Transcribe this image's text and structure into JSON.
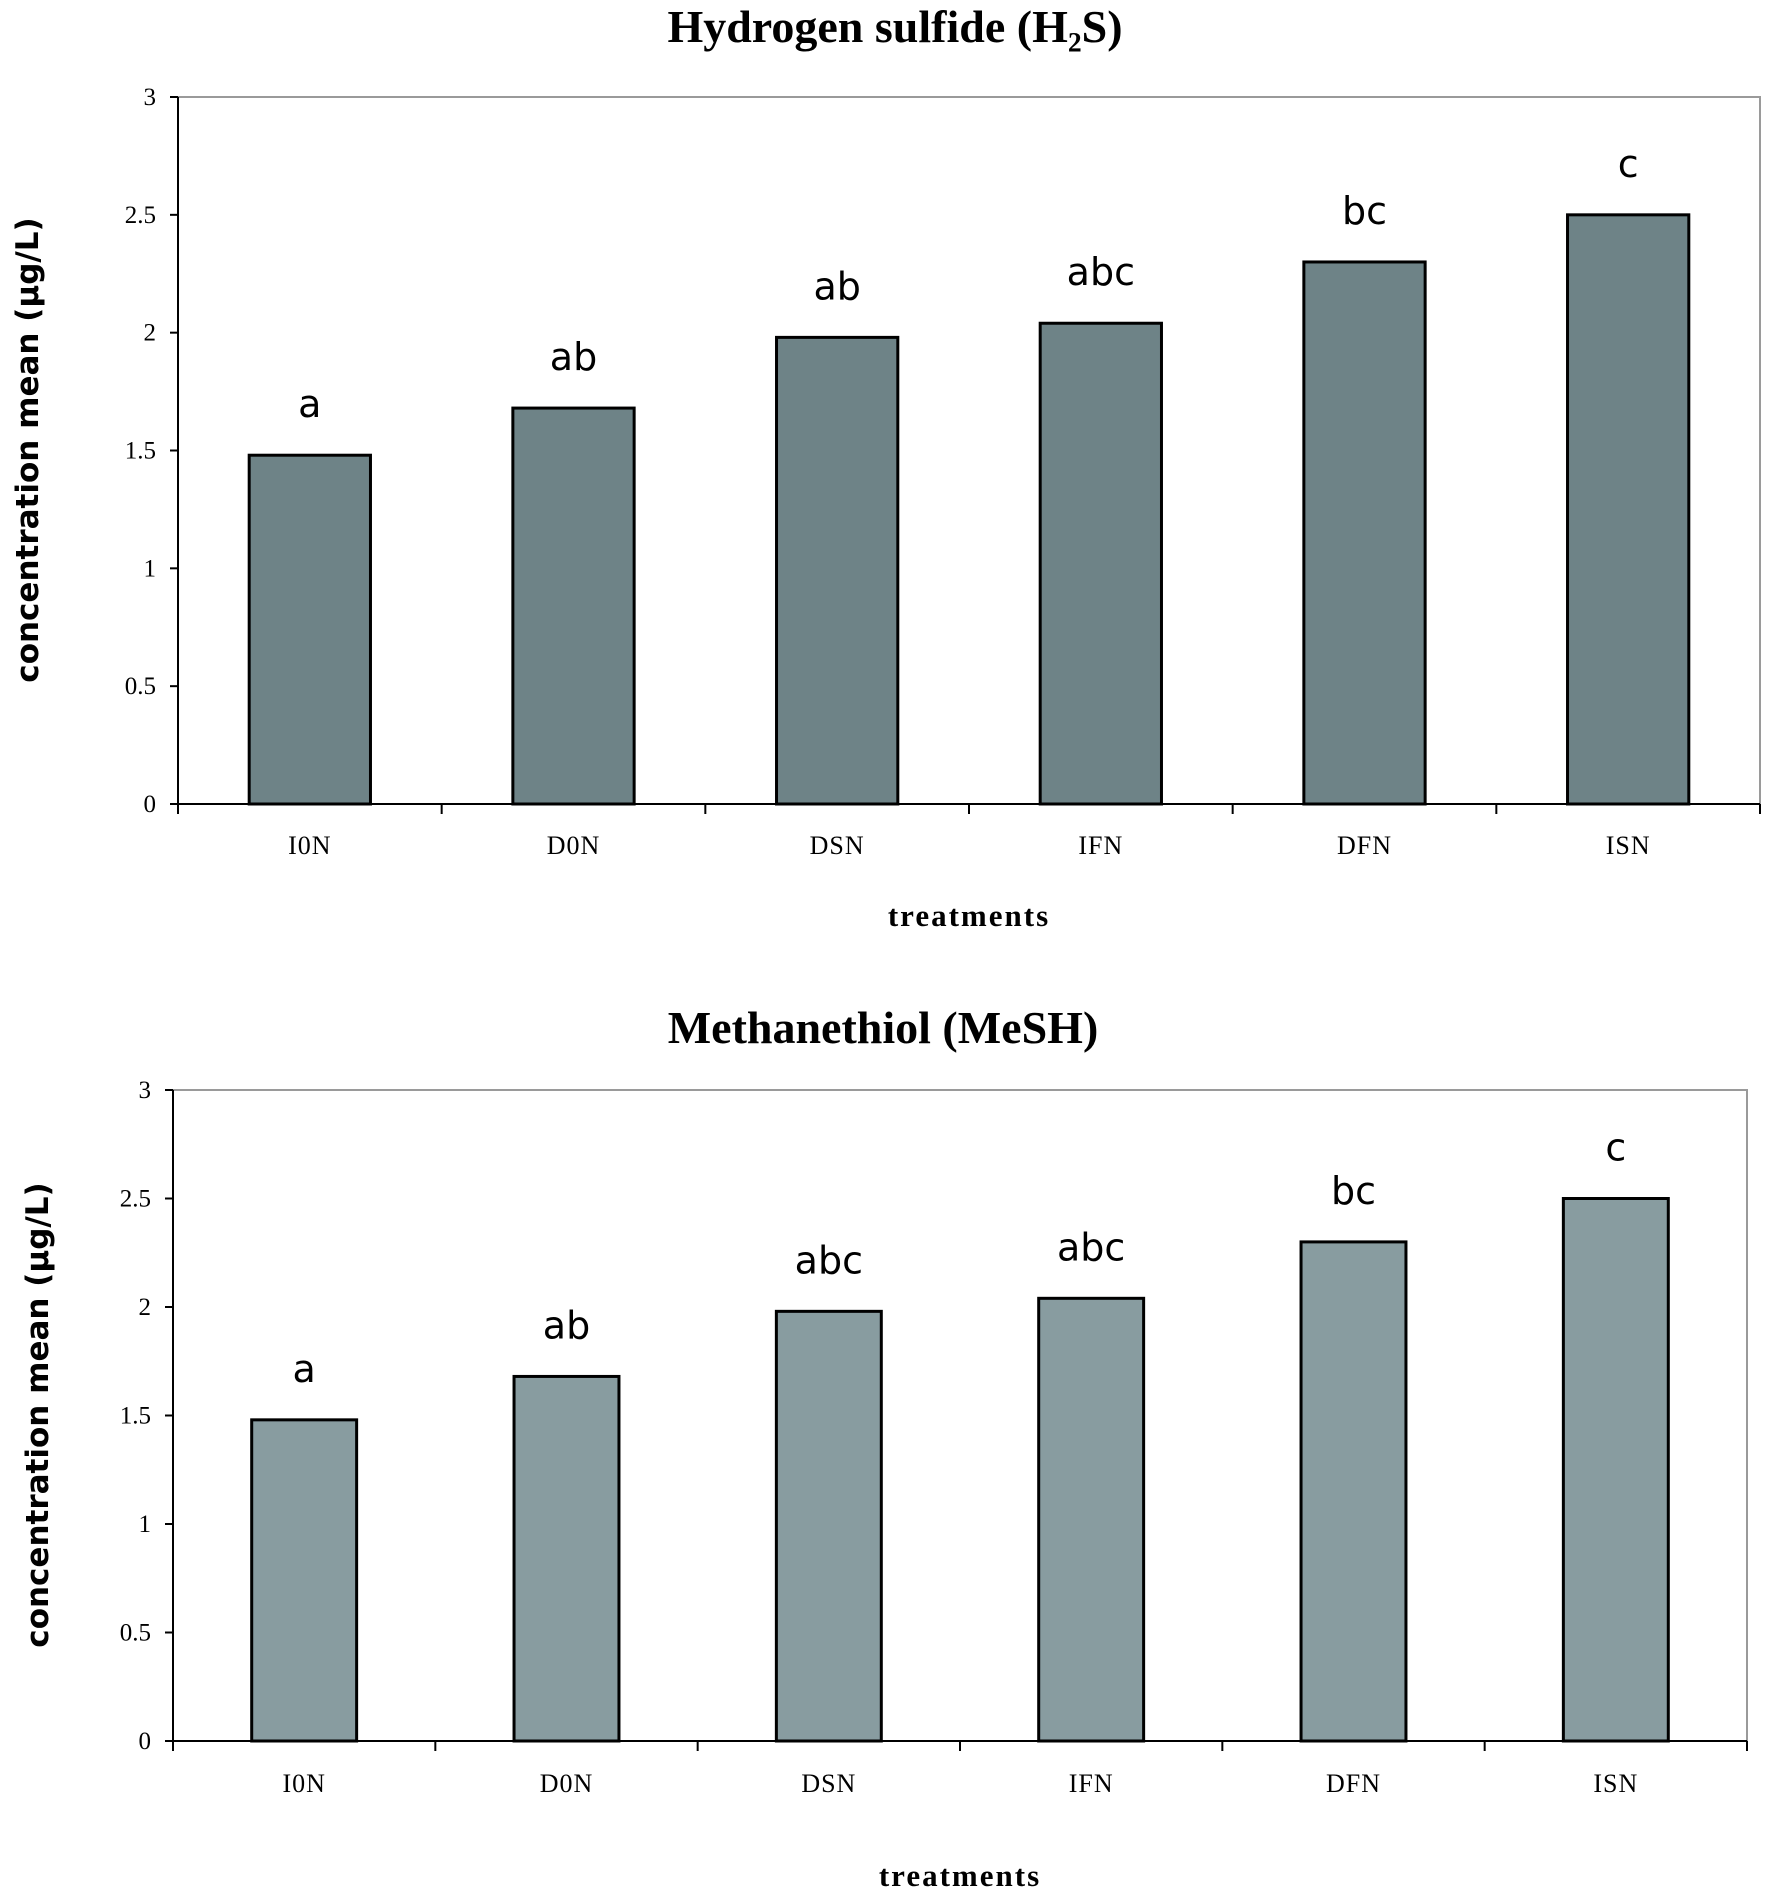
{
  "chart_data": [
    {
      "type": "bar",
      "title": "Hydrogen sulfide (H₂S)",
      "xlabel": "treatments",
      "ylabel": "concentration mean (µg/L)",
      "categories": [
        "I0N",
        "D0N",
        "DSN",
        "IFN",
        "DFN",
        "ISN"
      ],
      "values": [
        1.48,
        1.68,
        1.98,
        2.04,
        2.3,
        2.5
      ],
      "annotations": [
        "a",
        "ab",
        "ab",
        "abc",
        "bc",
        "c"
      ],
      "ylim": [
        0,
        3
      ],
      "yticks": [
        "0",
        "0.5",
        "1",
        "1.5",
        "2",
        "2.5",
        "3"
      ],
      "grid": false,
      "bar_color": "#6e8387"
    },
    {
      "type": "bar",
      "title": "Methanethiol (MeSH)",
      "xlabel": "treatments",
      "ylabel": "concentration mean (µg/L)",
      "categories": [
        "I0N",
        "D0N",
        "DSN",
        "IFN",
        "DFN",
        "ISN"
      ],
      "values": [
        1.48,
        1.68,
        1.98,
        2.04,
        2.3,
        2.5
      ],
      "annotations": [
        "a",
        "ab",
        "abc",
        "abc",
        "bc",
        "c"
      ],
      "ylim": [
        0,
        3
      ],
      "yticks": [
        "0",
        "0.5",
        "1",
        "1.5",
        "2",
        "2.5",
        "3"
      ],
      "grid": false,
      "bar_color": "#889ca0"
    }
  ]
}
